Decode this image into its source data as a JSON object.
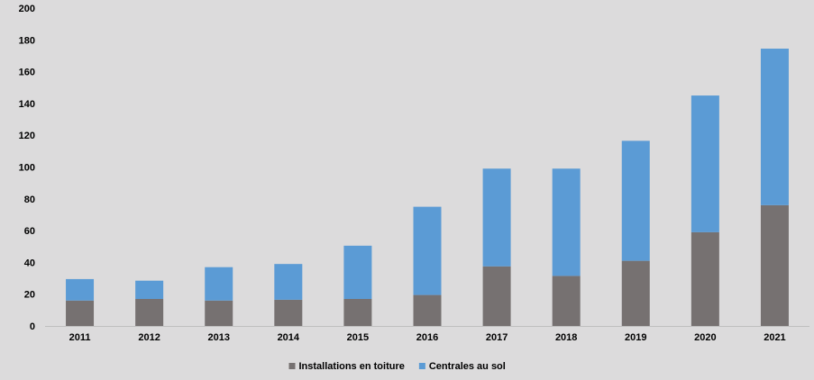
{
  "chart_data": {
    "type": "bar",
    "stacked": true,
    "categories": [
      "2011",
      "2012",
      "2013",
      "2014",
      "2015",
      "2016",
      "2017",
      "2018",
      "2019",
      "2020",
      "2021"
    ],
    "series": [
      {
        "name": "Installations en toiture",
        "color": "#767171",
        "values": [
          16,
          17,
          16,
          16.5,
          17,
          19.5,
          37.5,
          31.5,
          41,
          59,
          76
        ]
      },
      {
        "name": "Centrales au sol",
        "color": "#5b9bd5",
        "values": [
          13.5,
          11.5,
          21,
          22.5,
          33.5,
          55.5,
          61.5,
          67.5,
          75.5,
          86,
          98.5
        ]
      }
    ],
    "ylim": [
      0,
      200
    ],
    "yticks": [
      0,
      20,
      40,
      60,
      80,
      100,
      120,
      140,
      160,
      180,
      200
    ],
    "grid": false,
    "legend_position": "bottom-center",
    "title": "",
    "xlabel": "",
    "ylabel": ""
  }
}
